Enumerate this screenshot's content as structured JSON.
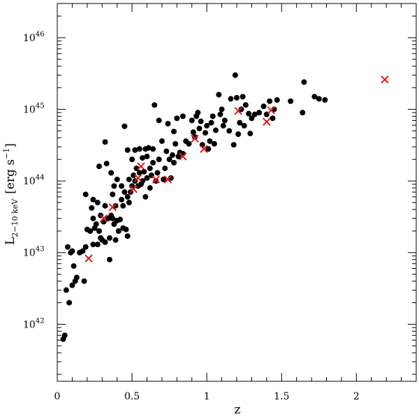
{
  "chart_data": {
    "type": "scatter",
    "xlabel": "z",
    "ylabel": {
      "main": "L",
      "subscript": "2−10 keV",
      "units": "[erg s",
      "units_exp": "−1",
      "units_close": "]"
    },
    "xlim": [
      0,
      2.4
    ],
    "ylim": [
      1.6e+41,
      3e+46
    ],
    "yscale": "log",
    "x_ticks": [
      {
        "value": 0,
        "label": "0"
      },
      {
        "value": 0.5,
        "label": "0.5"
      },
      {
        "value": 1,
        "label": "1"
      },
      {
        "value": 1.5,
        "label": "1.5"
      },
      {
        "value": 2,
        "label": "2"
      }
    ],
    "y_ticks": [
      {
        "value": 1e+42,
        "base": "10",
        "exp": "42"
      },
      {
        "value": 1e+43,
        "base": "10",
        "exp": "43"
      },
      {
        "value": 1e+44,
        "base": "10",
        "exp": "44"
      },
      {
        "value": 1e+45,
        "base": "10",
        "exp": "45"
      },
      {
        "value": 1e+46,
        "base": "10",
        "exp": "46"
      }
    ],
    "grid": false,
    "series": [
      {
        "marker": "circle",
        "color": "#000000",
        "points": [
          [
            0.04,
            6.2e+41
          ],
          [
            0.05,
            7e+41
          ],
          [
            0.06,
            3e+42
          ],
          [
            0.08,
            2e+42
          ],
          [
            0.07,
            1.2e+43
          ],
          [
            0.09,
            1e+43
          ],
          [
            0.1,
            1.05e+43
          ],
          [
            0.1,
            3.5e+42
          ],
          [
            0.11,
            6.5e+42
          ],
          [
            0.12,
            4e+42
          ],
          [
            0.13,
            4.5e+42
          ],
          [
            0.15,
            1e+43
          ],
          [
            0.17,
            1.05e+43
          ],
          [
            0.18,
            4e+42
          ],
          [
            0.19,
            1.2e+43
          ],
          [
            0.19,
            6.5e+43
          ],
          [
            0.2,
            2.1e+43
          ],
          [
            0.22,
            2e+43
          ],
          [
            0.23,
            4.2e+43
          ],
          [
            0.24,
            1.3e+43
          ],
          [
            0.24,
            3e+43
          ],
          [
            0.24,
            5.5e+43
          ],
          [
            0.25,
            2.2e+43
          ],
          [
            0.26,
            2.5e+43
          ],
          [
            0.27,
            1.3e+43
          ],
          [
            0.27,
            5e+43
          ],
          [
            0.28,
            1.6e+44
          ],
          [
            0.28,
            2e+43
          ],
          [
            0.29,
            1.6e+43
          ],
          [
            0.29,
            3.3e+43
          ],
          [
            0.3,
            1.5e+43
          ],
          [
            0.31,
            2.7e+43
          ],
          [
            0.32,
            1.4e+43
          ],
          [
            0.32,
            4.5e+43
          ],
          [
            0.32,
            3.5e+44
          ],
          [
            0.33,
            1.75e+44
          ],
          [
            0.34,
            3e+43
          ],
          [
            0.35,
            8e+42
          ],
          [
            0.35,
            1.6e+43
          ],
          [
            0.36,
            3.3e+43
          ],
          [
            0.36,
            1.3e+44
          ],
          [
            0.37,
            3e+43
          ],
          [
            0.37,
            6.5e+43
          ],
          [
            0.38,
            8.5e+43
          ],
          [
            0.38,
            2.5e+43
          ],
          [
            0.39,
            1.5e+43
          ],
          [
            0.39,
            4.5e+43
          ],
          [
            0.4,
            2.8e+43
          ],
          [
            0.4,
            1.05e+44
          ],
          [
            0.41,
            2e+43
          ],
          [
            0.42,
            2.9e+43
          ],
          [
            0.43,
            5.5e+43
          ],
          [
            0.43,
            8.5e+43
          ],
          [
            0.44,
            2.2e+43
          ],
          [
            0.44,
            4.5e+43
          ],
          [
            0.45,
            7e+43
          ],
          [
            0.45,
            5.8e+44
          ],
          [
            0.46,
            2.1e+43
          ],
          [
            0.47,
            2.7e+44
          ],
          [
            0.47,
            1.7e+43
          ],
          [
            0.47,
            6e+43
          ],
          [
            0.48,
            5e+43
          ],
          [
            0.48,
            1.05e+44
          ],
          [
            0.49,
            7e+43
          ],
          [
            0.5,
            2e+44
          ],
          [
            0.5,
            8.5e+43
          ],
          [
            0.51,
            1.2e+44
          ],
          [
            0.52,
            1e+44
          ],
          [
            0.52,
            2.7e+44
          ],
          [
            0.53,
            1.5e+44
          ],
          [
            0.54,
            8.5e+43
          ],
          [
            0.55,
            1.3e+44
          ],
          [
            0.55,
            2.8e+44
          ],
          [
            0.56,
            9e+43
          ],
          [
            0.57,
            1e+44
          ],
          [
            0.57,
            2.1e+44
          ],
          [
            0.58,
            1.35e+44
          ],
          [
            0.59,
            6e+43
          ],
          [
            0.59,
            2.8e+44
          ],
          [
            0.6,
            1.1e+44
          ],
          [
            0.6,
            2.2e+44
          ],
          [
            0.61,
            2.9e+44
          ],
          [
            0.62,
            8e+43
          ],
          [
            0.62,
            1.5e+44
          ],
          [
            0.63,
            1.2e+44
          ],
          [
            0.64,
            1.8e+44
          ],
          [
            0.64,
            2.8e+44
          ],
          [
            0.65,
            1.15e+45
          ],
          [
            0.66,
            1e+44
          ],
          [
            0.67,
            1.3e+44
          ],
          [
            0.68,
            2e+44
          ],
          [
            0.68,
            7e+44
          ],
          [
            0.7,
            3.6e+44
          ],
          [
            0.71,
            1.05e+44
          ],
          [
            0.72,
            1.5e+44
          ],
          [
            0.73,
            2.6e+44
          ],
          [
            0.74,
            6.3e+44
          ],
          [
            0.75,
            2e+44
          ],
          [
            0.76,
            1.1e+44
          ],
          [
            0.77,
            2.3e+44
          ],
          [
            0.78,
            4.9e+44
          ],
          [
            0.78,
            1.8e+44
          ],
          [
            0.79,
            3.3e+44
          ],
          [
            0.8,
            7.5e+44
          ],
          [
            0.81,
            2.2e+44
          ],
          [
            0.82,
            2.5e+44
          ],
          [
            0.84,
            2.4e+44
          ],
          [
            0.84,
            8e+44
          ],
          [
            0.86,
            3.6e+44
          ],
          [
            0.88,
            3.3e+44
          ],
          [
            0.9,
            7e+44
          ],
          [
            0.91,
            4.8e+44
          ],
          [
            0.92,
            4.1e+44
          ],
          [
            0.93,
            8e+44
          ],
          [
            0.94,
            9e+44
          ],
          [
            0.95,
            5.4e+44
          ],
          [
            0.96,
            6.8e+44
          ],
          [
            0.97,
            3.2e+44
          ],
          [
            0.99,
            4.7e+44
          ],
          [
            1.0,
            5.9e+44
          ],
          [
            1.01,
            2.8e+44
          ],
          [
            1.02,
            3.6e+44
          ],
          [
            1.03,
            6.5e+44
          ],
          [
            1.04,
            8e+44
          ],
          [
            1.05,
            3.3e+44
          ],
          [
            1.06,
            5.1e+44
          ],
          [
            1.08,
            1.6e+45
          ],
          [
            1.09,
            8.5e+44
          ],
          [
            1.1,
            1e+45
          ],
          [
            1.11,
            5.9e+44
          ],
          [
            1.12,
            7e+44
          ],
          [
            1.15,
            5e+44
          ],
          [
            1.16,
            1.4e+45
          ],
          [
            1.18,
            3.2e+44
          ],
          [
            1.19,
            3e+45
          ],
          [
            1.2,
            1.45e+45
          ],
          [
            1.21,
            4.5e+44
          ],
          [
            1.22,
            6.5e+44
          ],
          [
            1.23,
            1e+45
          ],
          [
            1.24,
            1.5e+45
          ],
          [
            1.25,
            5.9e+44
          ],
          [
            1.26,
            1.15e+45
          ],
          [
            1.28,
            8.7e+44
          ],
          [
            1.29,
            4.6e+44
          ],
          [
            1.3,
            7.5e+44
          ],
          [
            1.32,
            8.5e+44
          ],
          [
            1.35,
            9e+44
          ],
          [
            1.38,
            1.1e+45
          ],
          [
            1.4,
            8.5e+44
          ],
          [
            1.42,
            1.3e+45
          ],
          [
            1.44,
            7.5e+44
          ],
          [
            1.45,
            1e+45
          ],
          [
            1.47,
            1.35e+45
          ],
          [
            1.56,
            1.3e+45
          ],
          [
            1.64,
            9e+44
          ],
          [
            1.65,
            2.4e+45
          ],
          [
            1.72,
            1.5e+45
          ],
          [
            1.75,
            1.4e+45
          ],
          [
            1.79,
            1.35e+45
          ]
        ]
      },
      {
        "marker": "cross",
        "color": "#e0191a",
        "points": [
          [
            0.21,
            8.3e+42
          ],
          [
            0.31,
            3e+43
          ],
          [
            0.37,
            4.3e+43
          ],
          [
            0.51,
            7.7e+43
          ],
          [
            0.54,
            1.1e+44
          ],
          [
            0.56,
            1.6e+44
          ],
          [
            0.66,
            1.05e+44
          ],
          [
            0.74,
            1.05e+44
          ],
          [
            0.84,
            2.2e+44
          ],
          [
            0.92,
            3.9e+44
          ],
          [
            0.98,
            2.8e+44
          ],
          [
            1.21,
            9.5e+44
          ],
          [
            1.4,
            6.7e+44
          ],
          [
            1.43,
            9.7e+44
          ],
          [
            2.19,
            2.6e+45
          ]
        ]
      }
    ]
  }
}
